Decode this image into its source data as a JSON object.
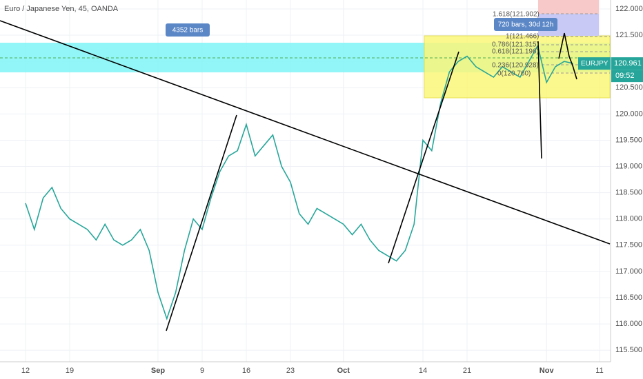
{
  "chart_data": {
    "type": "line",
    "title": "Euro / Japanese Yen, 45, OANDA",
    "categories": [
      "12",
      null,
      null,
      null,
      null,
      "19",
      null,
      null,
      null,
      null,
      null,
      null,
      null,
      null,
      null,
      "Sep",
      null,
      null,
      null,
      null,
      "9",
      null,
      null,
      null,
      null,
      "16",
      null,
      null,
      null,
      null,
      "23",
      null,
      null,
      null,
      null,
      null,
      "Oct",
      null,
      null,
      null,
      null,
      null,
      null,
      null,
      null,
      "14",
      null,
      null,
      null,
      null,
      "21",
      null,
      null,
      null,
      null,
      null,
      null,
      null,
      null,
      "Nov",
      null,
      null,
      null,
      null,
      null,
      "11"
    ],
    "series": [
      {
        "name": "EURJPY",
        "color": "#26a69a",
        "values": [
          118.3,
          117.8,
          118.4,
          118.6,
          118.2,
          118.0,
          117.9,
          117.8,
          117.6,
          117.9,
          117.6,
          117.5,
          117.6,
          117.8,
          117.4,
          116.6,
          116.1,
          116.6,
          117.4,
          118.0,
          117.8,
          118.4,
          118.9,
          119.2,
          119.3,
          119.8,
          119.2,
          119.4,
          119.6,
          119.0,
          118.7,
          118.1,
          117.9,
          118.2,
          118.1,
          118.0,
          117.9,
          117.7,
          117.9,
          117.6,
          117.4,
          117.3,
          117.2,
          117.4,
          117.9,
          119.5,
          119.3,
          120.2,
          120.8,
          121.0,
          121.1,
          120.9,
          120.8,
          120.7,
          120.9,
          120.8,
          120.7,
          121.0,
          121.3,
          120.6,
          120.9,
          121.0,
          120.961,
          null,
          null,
          null
        ]
      }
    ],
    "ylim": [
      115.28,
      122.17
    ],
    "yticks": [
      {
        "value": 115.5,
        "label": "115.500"
      },
      {
        "value": 116,
        "label": "116.000"
      },
      {
        "value": 116.5,
        "label": "116.500"
      },
      {
        "value": 117,
        "label": "117.000"
      },
      {
        "value": 117.5,
        "label": "117.500"
      },
      {
        "value": 118,
        "label": "118.000"
      },
      {
        "value": 118.5,
        "label": "118.500"
      },
      {
        "value": 119,
        "label": "119.000"
      },
      {
        "value": 119.5,
        "label": "119.500"
      },
      {
        "value": 120,
        "label": "120.000"
      },
      {
        "value": 120.5,
        "label": "120.500"
      },
      {
        "value": 121,
        "label": "121.000"
      },
      {
        "value": 121.5,
        "label": "121.500"
      },
      {
        "value": 122,
        "label": "122.000"
      }
    ],
    "grid": true,
    "countdown": "09:52",
    "annotations": [
      "4352 bars",
      "720 bars, 30d 12h",
      "1.618(121.902)",
      "1(121.466)",
      "0.786(121.315)",
      "0.618(121.196)",
      "0.236(120.928)",
      "0(120.760)"
    ]
  }
}
